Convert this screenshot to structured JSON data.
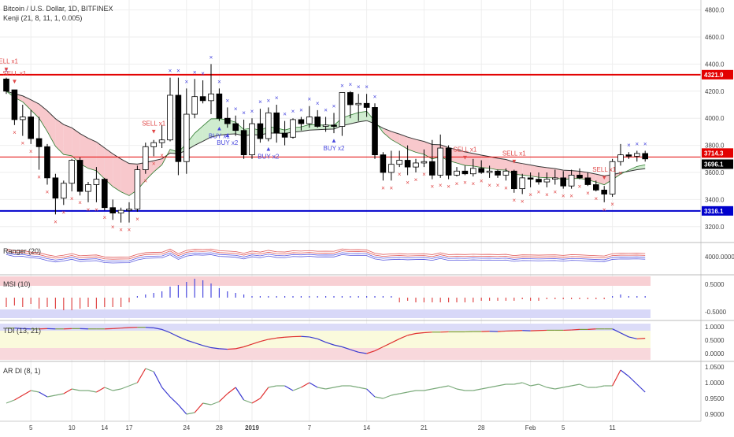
{
  "header": {
    "symbol": "Bitcoin / U.S. Dollar, 1D, BITFINEX",
    "indicator": "Kenji (21, 8, 11, 1, 0.005)"
  },
  "panels": {
    "ranger": "Ranger (20)",
    "msi": "MSI (10)",
    "tdi": "TDI (13, 21)",
    "ardi": "AR DI (8, 1)"
  },
  "colors": {
    "up_candle": "#ffffff",
    "down_candle": "#000000",
    "resistance": "#e30000",
    "support": "#0000cc",
    "buy": "#4a4adf",
    "sell": "#e04848",
    "cloud_bear": "#f8c8cc",
    "cloud_bull": "#cfeccf"
  },
  "chart_data": {
    "type": "candlestick",
    "ylim": [
      3100,
      4850
    ],
    "price_ticks": [
      "4800.0",
      "4600.0",
      "4400.0",
      "4200.0",
      "4000.0",
      "3800.0",
      "3600.0",
      "3400.0",
      "3200.0"
    ],
    "x_ticks": [
      "5",
      "10",
      "14",
      "17",
      "24",
      "28",
      "2019",
      "7",
      "14",
      "21",
      "28",
      "Feb",
      "5",
      "11"
    ],
    "levels": [
      {
        "name": "resistance",
        "value": 4321.9,
        "label": "4321.9"
      },
      {
        "name": "current",
        "value": 3714.3,
        "label": "3714.3"
      },
      {
        "name": "close",
        "value": 3696.1,
        "label": "3696.1"
      },
      {
        "name": "support",
        "value": 3316.1,
        "label": "3316.1"
      }
    ],
    "candles": [
      [
        4290,
        4300,
        4180,
        4200
      ],
      [
        4210,
        4210,
        3950,
        3990
      ],
      [
        3990,
        4100,
        3870,
        4010
      ],
      [
        4010,
        4060,
        3810,
        3850
      ],
      [
        3850,
        4010,
        3620,
        3790
      ],
      [
        3790,
        3810,
        3510,
        3560
      ],
      [
        3560,
        3590,
        3290,
        3410
      ],
      [
        3410,
        3540,
        3360,
        3520
      ],
      [
        3520,
        3700,
        3460,
        3690
      ],
      [
        3690,
        3710,
        3430,
        3460
      ],
      [
        3460,
        3530,
        3380,
        3510
      ],
      [
        3510,
        3640,
        3380,
        3550
      ],
      [
        3550,
        3560,
        3320,
        3340
      ],
      [
        3340,
        3400,
        3250,
        3300
      ],
      [
        3300,
        3340,
        3230,
        3320
      ],
      [
        3320,
        3380,
        3230,
        3330
      ],
      [
        3330,
        3650,
        3310,
        3620
      ],
      [
        3620,
        3820,
        3590,
        3790
      ],
      [
        3790,
        3840,
        3720,
        3820
      ],
      [
        3820,
        3950,
        3780,
        3840
      ],
      [
        3840,
        4300,
        3830,
        4170
      ],
      [
        4170,
        4300,
        3580,
        3680
      ],
      [
        3680,
        4220,
        3590,
        4030
      ],
      [
        4030,
        4290,
        4000,
        4160
      ],
      [
        4160,
        4280,
        4110,
        4130
      ],
      [
        4130,
        4400,
        4030,
        4180
      ],
      [
        4180,
        4220,
        3980,
        4000
      ],
      [
        4000,
        4080,
        3930,
        3960
      ],
      [
        3960,
        4020,
        3870,
        3910
      ],
      [
        3910,
        3990,
        3700,
        3730
      ],
      [
        3730,
        4000,
        3700,
        3960
      ],
      [
        3960,
        4070,
        3820,
        3850
      ],
      [
        3850,
        4080,
        3830,
        4040
      ],
      [
        4040,
        4100,
        3820,
        3890
      ],
      [
        3890,
        3980,
        3800,
        3860
      ],
      [
        3860,
        4000,
        3850,
        3990
      ],
      [
        3990,
        4010,
        3910,
        3960
      ],
      [
        3960,
        4090,
        3930,
        4010
      ],
      [
        4010,
        4060,
        3930,
        3940
      ],
      [
        3940,
        4010,
        3900,
        3950
      ],
      [
        3950,
        4040,
        3890,
        3940
      ],
      [
        3940,
        4190,
        3870,
        4190
      ],
      [
        4190,
        4200,
        4000,
        4100
      ],
      [
        4100,
        4180,
        3980,
        4110
      ],
      [
        4110,
        4180,
        4010,
        4080
      ],
      [
        4080,
        4110,
        3700,
        3730
      ],
      [
        3730,
        3750,
        3540,
        3600
      ],
      [
        3600,
        3760,
        3540,
        3660
      ],
      [
        3660,
        3760,
        3640,
        3690
      ],
      [
        3690,
        3800,
        3580,
        3640
      ],
      [
        3640,
        3700,
        3600,
        3670
      ],
      [
        3670,
        3770,
        3640,
        3680
      ],
      [
        3680,
        3840,
        3550,
        3580
      ],
      [
        3580,
        3880,
        3560,
        3780
      ],
      [
        3780,
        3800,
        3550,
        3580
      ],
      [
        3580,
        3640,
        3570,
        3610
      ],
      [
        3610,
        3650,
        3580,
        3590
      ],
      [
        3590,
        3700,
        3570,
        3630
      ],
      [
        3630,
        3690,
        3590,
        3600
      ],
      [
        3600,
        3650,
        3560,
        3610
      ],
      [
        3610,
        3620,
        3560,
        3580
      ],
      [
        3580,
        3630,
        3540,
        3610
      ],
      [
        3610,
        3620,
        3450,
        3480
      ],
      [
        3480,
        3590,
        3440,
        3560
      ],
      [
        3560,
        3600,
        3490,
        3550
      ],
      [
        3550,
        3600,
        3510,
        3530
      ],
      [
        3530,
        3600,
        3490,
        3550
      ],
      [
        3550,
        3620,
        3510,
        3560
      ],
      [
        3560,
        3610,
        3480,
        3500
      ],
      [
        3500,
        3620,
        3480,
        3580
      ],
      [
        3580,
        3630,
        3550,
        3560
      ],
      [
        3560,
        3600,
        3500,
        3510
      ],
      [
        3510,
        3540,
        3460,
        3470
      ],
      [
        3470,
        3500,
        3380,
        3440
      ],
      [
        3440,
        3700,
        3420,
        3680
      ],
      [
        3680,
        3810,
        3650,
        3730
      ],
      [
        3730,
        3750,
        3700,
        3720
      ],
      [
        3720,
        3760,
        3680,
        3740
      ],
      [
        3740,
        3760,
        3680,
        3700
      ]
    ],
    "signals": [
      {
        "type": "sell",
        "label": "SELL x1",
        "i": 0
      },
      {
        "type": "sell",
        "label": "SELL x1",
        "i": 1
      },
      {
        "type": "sell",
        "label": "SELL x1",
        "i": 18
      },
      {
        "type": "buy",
        "label": "BUY x1",
        "i": 26
      },
      {
        "type": "buy",
        "label": "BUY x2",
        "i": 27
      },
      {
        "type": "buy",
        "label": "BUY x2",
        "i": 32
      },
      {
        "type": "buy",
        "label": "BUY x2",
        "i": 40
      },
      {
        "type": "sell",
        "label": "SELL x1",
        "i": 56
      },
      {
        "type": "sell",
        "label": "SELL x1",
        "i": 62
      },
      {
        "type": "sell",
        "label": "SELL x1",
        "i": 73
      }
    ],
    "msi": [
      -0.3,
      -0.25,
      -0.3,
      -0.2,
      -0.35,
      -0.3,
      -0.35,
      -0.4,
      -0.4,
      -0.35,
      -0.3,
      -0.35,
      -0.3,
      -0.3,
      -0.3,
      -0.15,
      0.05,
      0.1,
      0.15,
      0.2,
      0.35,
      0.4,
      0.5,
      0.6,
      0.55,
      0.45,
      0.3,
      0.2,
      0.15,
      0.1,
      0.05,
      0.05,
      0.05,
      0.05,
      0.05,
      0.05,
      0.05,
      0.05,
      0.05,
      0.05,
      0.05,
      0.05,
      0.05,
      0.05,
      0.05,
      0.05,
      0.05,
      0.05,
      -0.15,
      -0.1,
      -0.15,
      -0.15,
      -0.15,
      -0.15,
      -0.15,
      -0.15,
      -0.15,
      -0.15,
      -0.1,
      -0.1,
      -0.1,
      -0.1,
      -0.1,
      -0.05,
      -0.1,
      -0.1,
      -0.05,
      -0.05,
      -0.05,
      -0.05,
      -0.05,
      -0.05,
      -0.05,
      -0.05,
      0.05,
      0.1,
      0.05,
      0.05,
      0.05
    ],
    "tdi_ticks": [
      "1.0000",
      "0.5000",
      "0.0000"
    ],
    "tdi": [
      0.95,
      0.95,
      0.93,
      0.92,
      0.92,
      0.93,
      0.92,
      0.92,
      0.93,
      0.93,
      0.92,
      0.92,
      0.92,
      0.93,
      0.95,
      0.97,
      0.98,
      0.98,
      0.96,
      0.9,
      0.78,
      0.63,
      0.5,
      0.4,
      0.3,
      0.22,
      0.18,
      0.16,
      0.18,
      0.25,
      0.35,
      0.45,
      0.53,
      0.58,
      0.61,
      0.63,
      0.64,
      0.62,
      0.55,
      0.42,
      0.32,
      0.25,
      0.15,
      0.05,
      0.0,
      0.1,
      0.25,
      0.4,
      0.55,
      0.68,
      0.75,
      0.78,
      0.8,
      0.8,
      0.81,
      0.81,
      0.81,
      0.82,
      0.82,
      0.83,
      0.82,
      0.84,
      0.85,
      0.86,
      0.85,
      0.86,
      0.87,
      0.87,
      0.87,
      0.88,
      0.9,
      0.9,
      0.92,
      0.92,
      0.92,
      0.77,
      0.62,
      0.55,
      0.57
    ],
    "ardi_ticks": [
      "1.0500",
      "1.0000",
      "0.9500",
      "0.9000"
    ],
    "ardi": [
      0.935,
      0.945,
      0.96,
      0.975,
      0.97,
      0.955,
      0.96,
      0.965,
      0.98,
      0.975,
      0.975,
      0.97,
      0.985,
      0.975,
      0.98,
      0.99,
      1.0,
      1.045,
      1.035,
      0.985,
      0.955,
      0.93,
      0.9,
      0.905,
      0.935,
      0.93,
      0.94,
      0.965,
      0.985,
      0.945,
      0.935,
      0.95,
      0.985,
      0.99,
      0.99,
      0.975,
      0.985,
      1.0,
      0.985,
      0.98,
      0.985,
      0.99,
      0.99,
      0.985,
      0.98,
      0.955,
      0.95,
      0.96,
      0.965,
      0.97,
      0.975,
      0.975,
      0.98,
      0.985,
      0.99,
      0.98,
      0.975,
      0.975,
      0.98,
      0.985,
      0.99,
      0.995,
      0.995,
      1.0,
      0.99,
      0.995,
      0.985,
      0.98,
      0.985,
      0.99,
      0.995,
      0.985,
      0.985,
      0.99,
      0.99,
      1.04,
      1.02,
      0.995,
      0.97
    ]
  }
}
